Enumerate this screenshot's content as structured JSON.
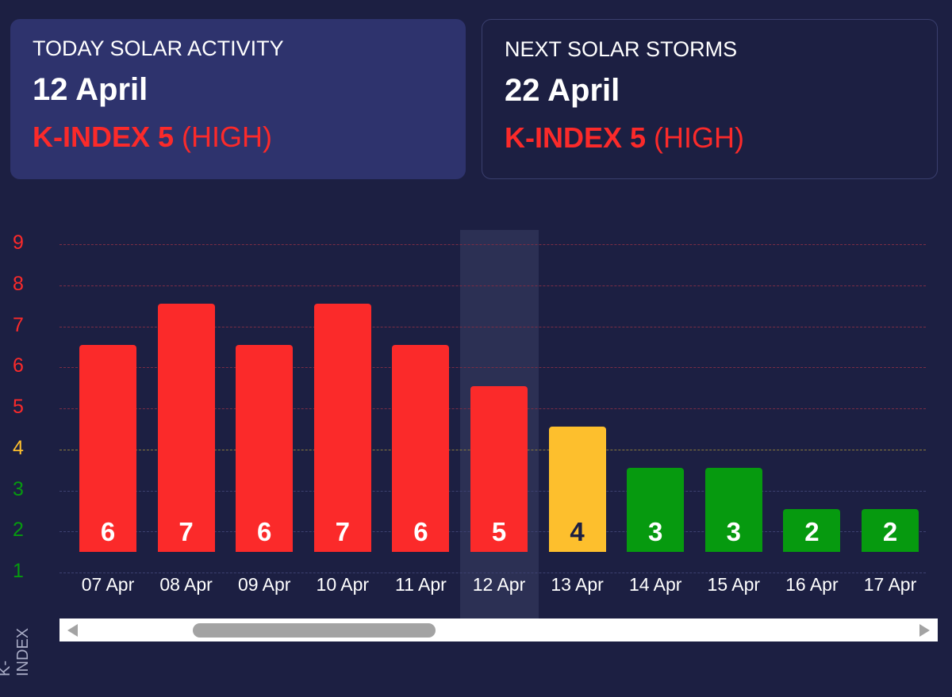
{
  "today": {
    "label": "TODAY SOLAR ACTIVITY",
    "date": "12 April",
    "kindex": "K-INDEX 5",
    "level": "(HIGH)"
  },
  "next": {
    "label": "NEXT SOLAR STORMS",
    "date": "22 April",
    "kindex": "K-INDEX 5",
    "level": "(HIGH)"
  },
  "colors": {
    "high": "#fb2a2a",
    "moderate": "#fdbf2d",
    "low": "#069a0f",
    "bg": "#1c1f42"
  },
  "chart_data": {
    "type": "bar",
    "ylabel": "K-INDEX",
    "ylim": [
      1,
      9
    ],
    "yticks": [
      "1",
      "2",
      "3",
      "4",
      "5",
      "6",
      "7",
      "8",
      "9"
    ],
    "categories": [
      "07 Apr",
      "08 Apr",
      "09 Apr",
      "10 Apr",
      "11 Apr",
      "12 Apr",
      "13 Apr",
      "14 Apr",
      "15 Apr",
      "16 Apr",
      "17 Apr"
    ],
    "values": [
      6,
      7,
      6,
      7,
      6,
      5,
      4,
      3,
      3,
      2,
      2
    ],
    "value_labels": [
      "6",
      "7",
      "6",
      "7",
      "6",
      "5",
      "4",
      "3",
      "3",
      "2",
      "2"
    ],
    "highlighted": "12 Apr"
  }
}
